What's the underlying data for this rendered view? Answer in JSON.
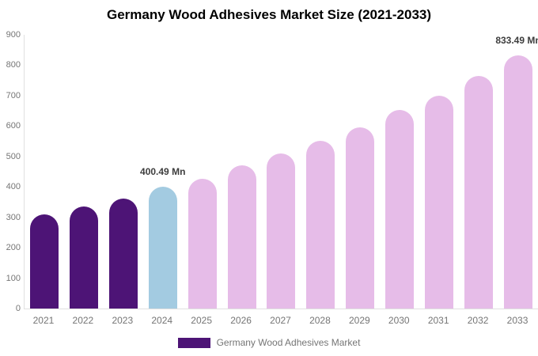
{
  "chart_data": {
    "type": "bar",
    "title": "Germany Wood Adhesives Market Size (2021-2033)",
    "categories": [
      "2021",
      "2022",
      "2023",
      "2024",
      "2025",
      "2026",
      "2027",
      "2028",
      "2029",
      "2030",
      "2031",
      "2032",
      "2033"
    ],
    "values": [
      310,
      335,
      362,
      400.49,
      427,
      470,
      510,
      551,
      597,
      652,
      700,
      766,
      833.49
    ],
    "bar_colors": [
      "#4D1476",
      "#4D1476",
      "#4D1476",
      "#A3CBE1",
      "#E6BCE8",
      "#E6BCE8",
      "#E6BCE8",
      "#E6BCE8",
      "#E6BCE8",
      "#E6BCE8",
      "#E6BCE8",
      "#E6BCE8",
      "#E6BCE8"
    ],
    "annotations": [
      {
        "category": "2024",
        "index": 3,
        "text": "400.49 Mn"
      },
      {
        "category": "2033",
        "index": 12,
        "text": "833.49 Mn"
      }
    ],
    "xlabel": "",
    "ylabel": "",
    "ylim": [
      0,
      900
    ],
    "yticks": [
      0,
      100,
      200,
      300,
      400,
      500,
      600,
      700,
      800,
      900
    ],
    "grid": false,
    "legend": {
      "position": "bottom",
      "items": [
        {
          "label": "Germany Wood Adhesives Market",
          "color": "#4D1476"
        }
      ]
    }
  },
  "colors": {
    "axis_line": "#E0E0E0",
    "tick_text": "#757575",
    "annotation_text": "#3D3D3D",
    "title_text": "#000000",
    "background": "#FFFFFF"
  }
}
